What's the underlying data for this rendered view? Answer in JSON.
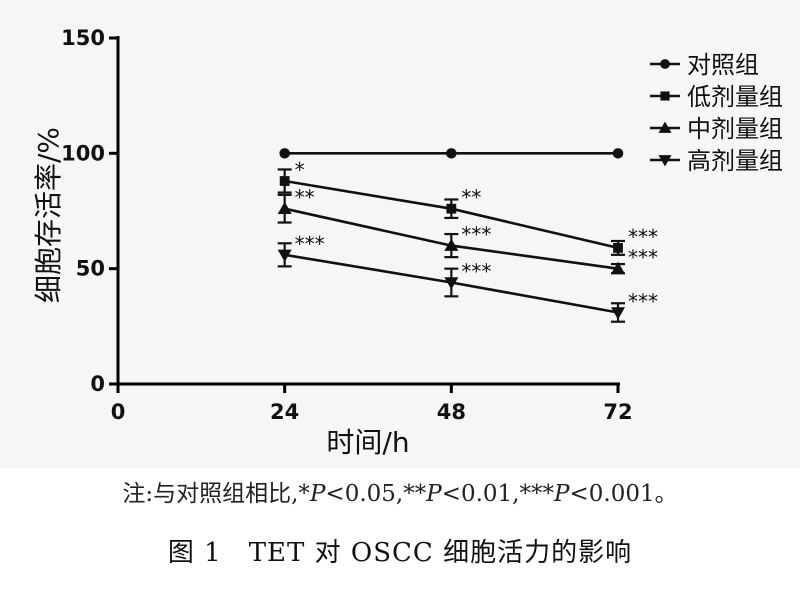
{
  "chart_data": {
    "type": "line",
    "xlabel": "时间/h",
    "ylabel": "细胞存活率/%",
    "x": [
      24,
      48,
      72
    ],
    "x_ticks": [
      0,
      24,
      48,
      72
    ],
    "xlim": [
      0,
      72
    ],
    "y_ticks": [
      0,
      50,
      100,
      150
    ],
    "ylim": [
      0,
      150
    ],
    "grid": false,
    "legend_position": "top-right",
    "series": [
      {
        "name": "对照组",
        "marker": "circle",
        "values": [
          100,
          100,
          100
        ],
        "errors": [
          0,
          0,
          0
        ],
        "sig": [
          "",
          "",
          ""
        ]
      },
      {
        "name": "低剂量组",
        "marker": "square",
        "values": [
          88,
          76,
          59
        ],
        "errors": [
          5,
          4,
          3
        ],
        "sig": [
          "*",
          "**",
          "***"
        ]
      },
      {
        "name": "中剂量组",
        "marker": "triangle-up",
        "values": [
          76,
          60,
          50
        ],
        "errors": [
          6,
          5,
          2
        ],
        "sig": [
          "**",
          "***",
          "***"
        ]
      },
      {
        "name": "高剂量组",
        "marker": "triangle-down",
        "values": [
          56,
          44,
          31
        ],
        "errors": [
          5,
          6,
          4
        ],
        "sig": [
          "***",
          "***",
          "***"
        ]
      }
    ]
  },
  "note": {
    "prefix": "注:与对照组相比,*",
    "p1": "P",
    "t1": "<0.05,**",
    "p2": "P",
    "t2": "<0.01,***",
    "p3": "P",
    "t3": "<0.001。"
  },
  "caption": "图 1　TET 对 OSCC 细胞活力的影响"
}
